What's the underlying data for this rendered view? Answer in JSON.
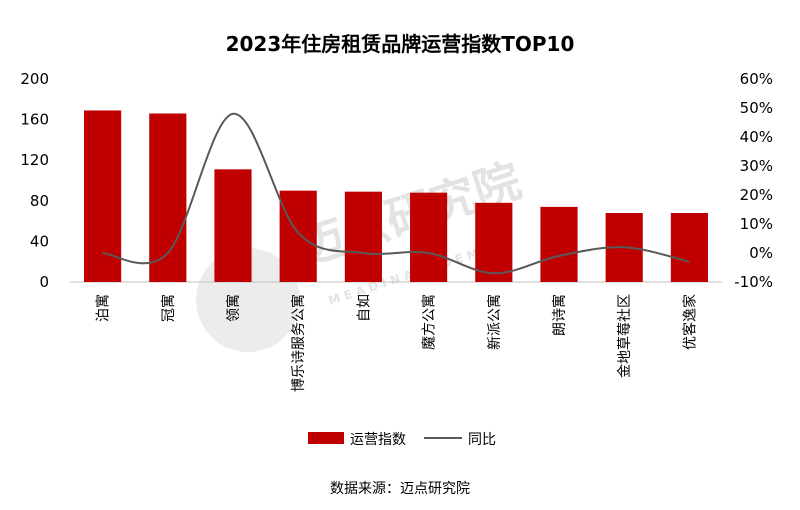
{
  "chart_data": {
    "type": "bar",
    "title": "2023年住房租赁品牌运营指数TOP10",
    "categories": [
      "泊寓",
      "冠寓",
      "领寓",
      "博乐诗服务公寓",
      "自如",
      "魔方公寓",
      "新派公寓",
      "朗诗寓",
      "金地草莓社区",
      "优客逸家"
    ],
    "series": [
      {
        "name": "运营指数",
        "type": "bar",
        "axis": "left",
        "color": "#c00000",
        "values": [
          169,
          166,
          111,
          90,
          89,
          88,
          78,
          74,
          68,
          68
        ]
      },
      {
        "name": "同比",
        "type": "line",
        "axis": "right",
        "smooth": true,
        "color": "#595959",
        "values": [
          0,
          0,
          48,
          7,
          0,
          0,
          -7,
          -1,
          2,
          -3
        ]
      }
    ],
    "ylim": [
      0,
      200
    ],
    "yticks": [
      "0",
      "40",
      "80",
      "120",
      "160",
      "200"
    ],
    "y2lim": [
      -10,
      60
    ],
    "y2ticks": [
      "-10%",
      "0%",
      "10%",
      "20%",
      "30%",
      "40%",
      "50%",
      "60%"
    ],
    "grid": false,
    "legend": "bottom"
  },
  "source": "数据来源：迈点研究院",
  "watermark": {
    "main": "迈点研究院",
    "sub": "M E A D I N   A C A D E M Y"
  }
}
